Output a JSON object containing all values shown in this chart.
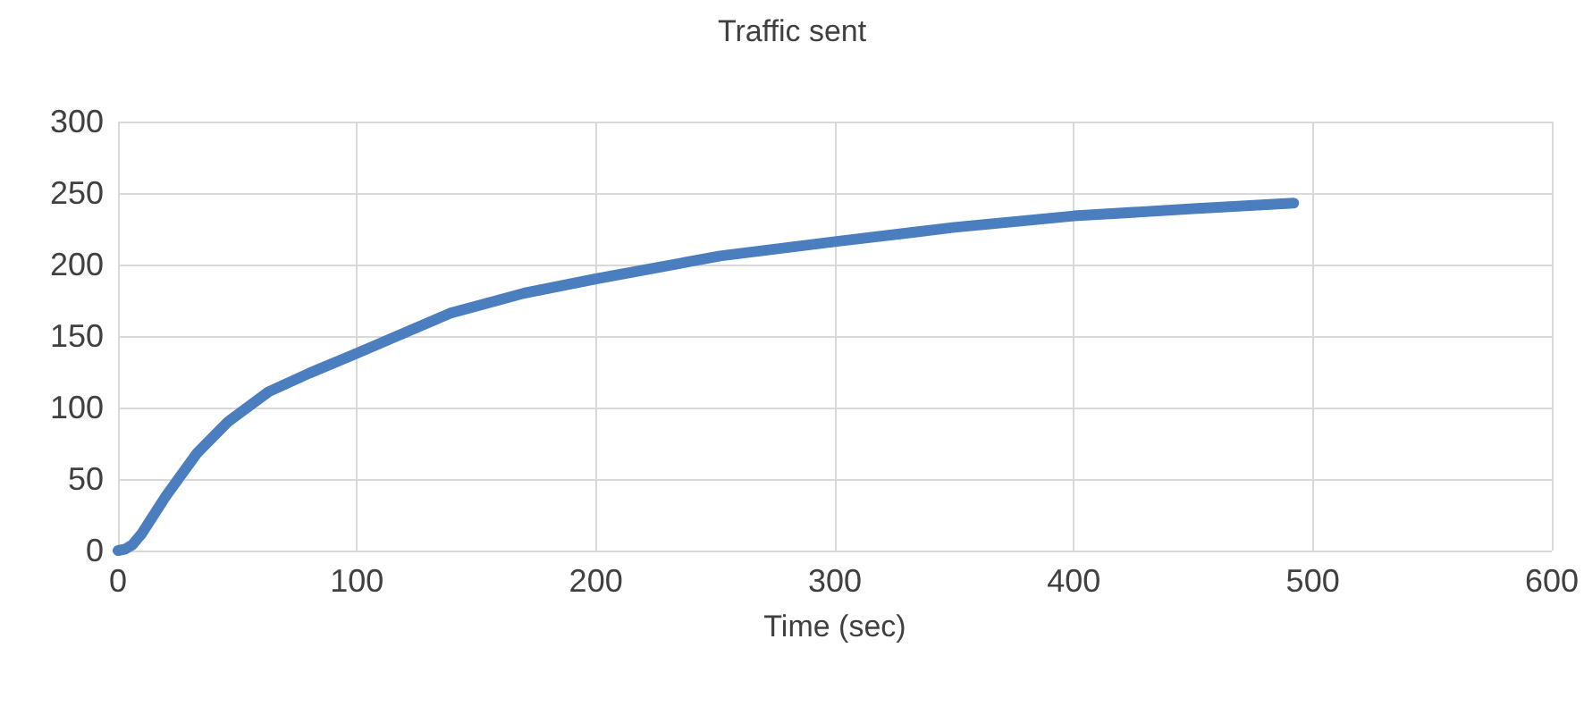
{
  "chart_data": {
    "type": "line",
    "title": "Traffic sent",
    "xlabel": "Time (sec)",
    "x": [
      0,
      3,
      6,
      10,
      20,
      33,
      46,
      63,
      80,
      100,
      139,
      170,
      200,
      252,
      300,
      350,
      400,
      450,
      492
    ],
    "series": [
      {
        "color": "#4a7ebf",
        "values": [
          0,
          1,
          4,
          12,
          38,
          68,
          90,
          111,
          124,
          138,
          166,
          180,
          190,
          206,
          216,
          226,
          234,
          239,
          243
        ]
      }
    ],
    "xlim": [
      0,
      600
    ],
    "xticks": [
      0,
      100,
      200,
      300,
      400,
      500,
      600
    ],
    "ylim": [
      0,
      300
    ],
    "yticks": [
      0,
      50,
      100,
      150,
      200,
      250,
      300
    ],
    "grid": true,
    "marker": "none",
    "line_style": "solid"
  }
}
